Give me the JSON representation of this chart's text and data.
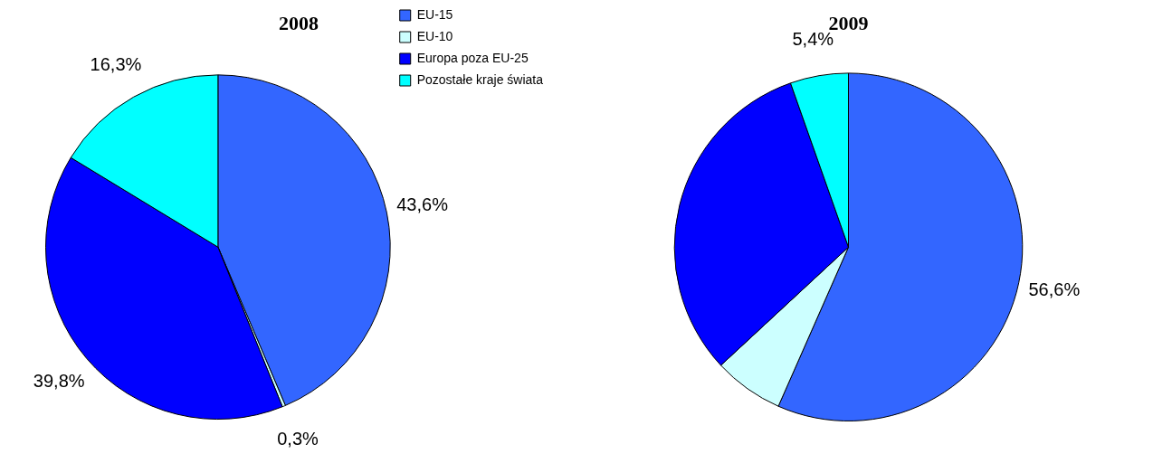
{
  "chart_data": [
    {
      "type": "pie",
      "title": "2008",
      "categories": [
        "EU-15",
        "EU-10",
        "Europa poza EU-25",
        "Pozostałe kraje świata"
      ],
      "values": [
        43.6,
        0.3,
        39.8,
        16.3
      ],
      "value_labels": [
        "43,6%",
        "0,3%",
        "39,8%",
        "16,3%"
      ],
      "colors": [
        "#3366ff",
        "#ccffff",
        "#0000ff",
        "#00ffff"
      ],
      "legend": "top right"
    },
    {
      "type": "pie",
      "title": "2009",
      "categories": [
        null,
        null,
        null,
        null
      ],
      "values": [
        56.6,
        6.5,
        31.5,
        5.4
      ],
      "value_labels": [
        "56,6%",
        null,
        null,
        "5,4%"
      ],
      "colors": [
        "#3366ff",
        "#ccffff",
        "#0000ff",
        "#00ffff"
      ]
    }
  ]
}
